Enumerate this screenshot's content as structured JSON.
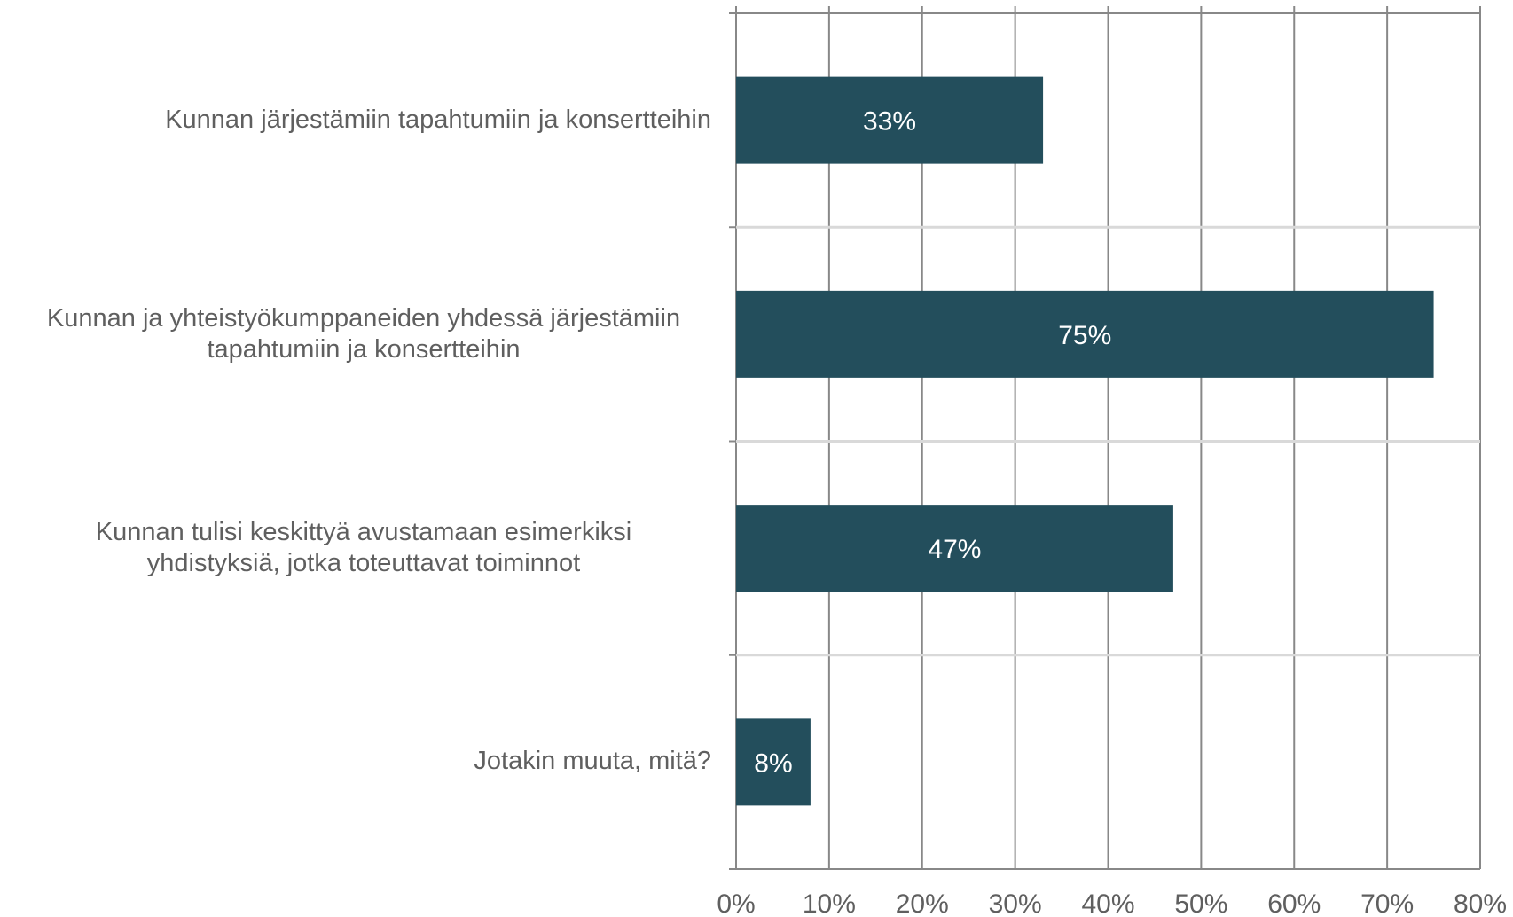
{
  "chart_data": {
    "type": "bar",
    "orientation": "horizontal",
    "title": "",
    "xlabel": "",
    "ylabel": "",
    "categories": [
      "Kunnan järjestämiin tapahtumiin ja konsertteihin",
      "Kunnan ja yhteistyökumppaneiden yhdessä järjestämiin tapahtumiin ja konsertteihin",
      "Kunnan tulisi keskittyä avustamaan esimerkiksi yhdistyksiä, jotka toteuttavat toiminnot",
      "Jotakin muuta, mitä?"
    ],
    "values": [
      33,
      75,
      47,
      8
    ],
    "data_labels": [
      "33%",
      "75%",
      "47%",
      "8%"
    ],
    "xlim": [
      0,
      80
    ],
    "xticks": [
      0,
      10,
      20,
      30,
      40,
      50,
      60,
      70,
      80
    ],
    "xtick_labels": [
      "0%",
      "10%",
      "20%",
      "30%",
      "40%",
      "50%",
      "60%",
      "70%",
      "80%"
    ],
    "grid": true,
    "legend": "none",
    "colors": {
      "bar": "#234e5c",
      "data_label": "#ffffff",
      "text": "#5f5f5f",
      "gridline": "#888888",
      "category_separator": "#d9d9d9"
    }
  }
}
